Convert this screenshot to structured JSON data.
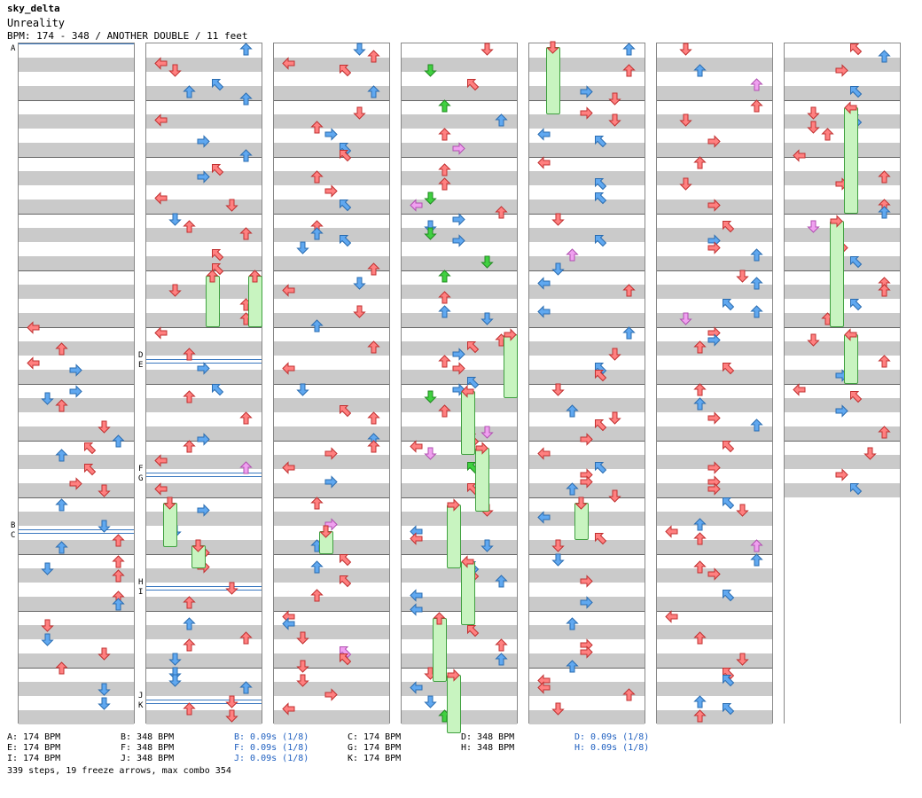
{
  "header": {
    "author": "sky_delta",
    "title": "Unreality",
    "info": "BPM: 174 - 348 / ANOTHER DOUBLE / 11 feet"
  },
  "colors": {
    "red": "#ff8080",
    "blue": "#60a8f0",
    "green": "#40d040",
    "pink": "#f0a0f0",
    "freeze": "#c8f4c0",
    "band": "#cacaca",
    "bpm_line": "#3a78c0"
  },
  "column_count": 7,
  "timing_markers": [
    {
      "label": "A",
      "col": 0
    },
    {
      "label": "B",
      "col": 0
    },
    {
      "label": "C",
      "col": 0
    },
    {
      "label": "D",
      "col": 1
    },
    {
      "label": "E",
      "col": 1
    },
    {
      "label": "F",
      "col": 1
    },
    {
      "label": "G",
      "col": 1
    },
    {
      "label": "H",
      "col": 1
    },
    {
      "label": "I",
      "col": 1
    },
    {
      "label": "J",
      "col": 1
    },
    {
      "label": "K",
      "col": 1
    }
  ],
  "footer": [
    {
      "text": "A: 174 BPM",
      "blue": false
    },
    {
      "text": "B: 348 BPM",
      "blue": false
    },
    {
      "text": "B: 0.09s (1/8)",
      "blue": true
    },
    {
      "text": "C: 174 BPM",
      "blue": false
    },
    {
      "text": "D: 348 BPM",
      "blue": false
    },
    {
      "text": "D: 0.09s (1/8)",
      "blue": true
    },
    {
      "text": "E: 174 BPM",
      "blue": false
    },
    {
      "text": "F: 348 BPM",
      "blue": false
    },
    {
      "text": "F: 0.09s (1/8)",
      "blue": true
    },
    {
      "text": "G: 174 BPM",
      "blue": false
    },
    {
      "text": "H: 348 BPM",
      "blue": false
    },
    {
      "text": "H: 0.09s (1/8)",
      "blue": true
    },
    {
      "text": "I: 174 BPM",
      "blue": false
    },
    {
      "text": "J: 348 BPM",
      "blue": false
    },
    {
      "text": "J: 0.09s (1/8)",
      "blue": true
    },
    {
      "text": "K: 174 BPM",
      "blue": false
    }
  ],
  "summary": "339 steps, 19 freeze arrows, max combo 354"
}
